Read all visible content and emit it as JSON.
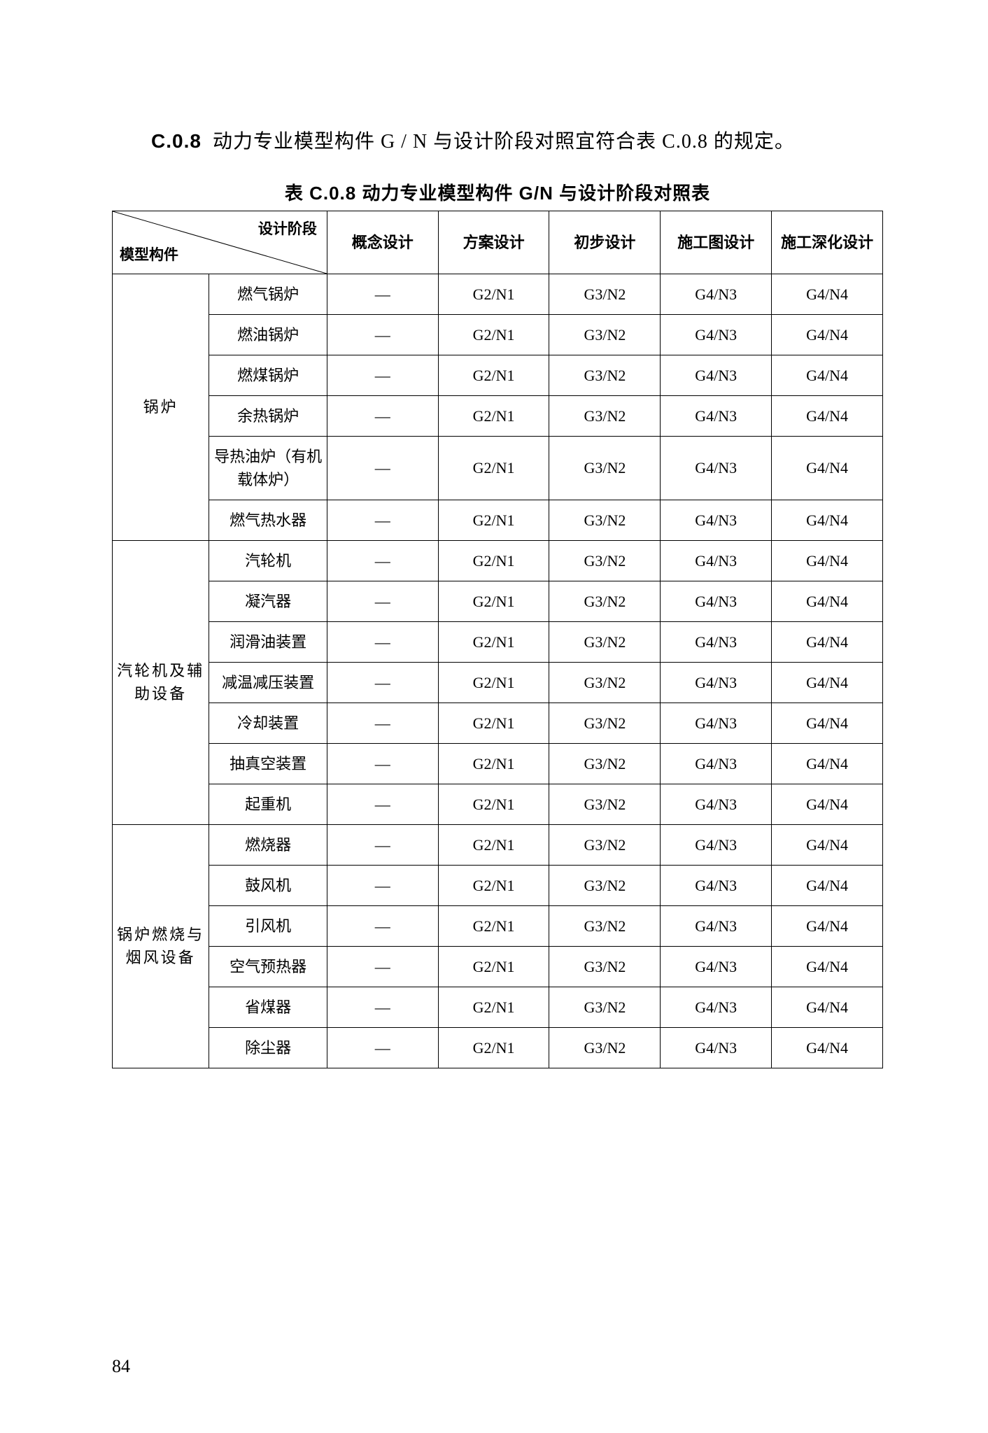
{
  "intro": {
    "section_code": "C.0.8",
    "text": "动力专业模型构件 G / N 与设计阶段对照宜符合表 C.0.8 的规定。"
  },
  "table": {
    "title": "表 C.0.8  动力专业模型构件 G/N 与设计阶段对照表",
    "header": {
      "diagonal_top": "设计阶段",
      "diagonal_bottom": "模型构件",
      "stages": [
        "概念设计",
        "方案设计",
        "初步设计",
        "施工图设计",
        "施工深化设计"
      ]
    },
    "groups": [
      {
        "category": "锅炉",
        "rows": [
          {
            "name": "燃气锅炉",
            "values": [
              "—",
              "G2/N1",
              "G3/N2",
              "G4/N3",
              "G4/N4"
            ]
          },
          {
            "name": "燃油锅炉",
            "values": [
              "—",
              "G2/N1",
              "G3/N2",
              "G4/N3",
              "G4/N4"
            ]
          },
          {
            "name": "燃煤锅炉",
            "values": [
              "—",
              "G2/N1",
              "G3/N2",
              "G4/N3",
              "G4/N4"
            ]
          },
          {
            "name": "余热锅炉",
            "values": [
              "—",
              "G2/N1",
              "G3/N2",
              "G4/N3",
              "G4/N4"
            ]
          },
          {
            "name": "导热油炉（有机载体炉）",
            "values": [
              "—",
              "G2/N1",
              "G3/N2",
              "G4/N3",
              "G4/N4"
            ]
          },
          {
            "name": "燃气热水器",
            "values": [
              "—",
              "G2/N1",
              "G3/N2",
              "G4/N3",
              "G4/N4"
            ]
          }
        ]
      },
      {
        "category": "汽轮机及辅助设备",
        "rows": [
          {
            "name": "汽轮机",
            "values": [
              "—",
              "G2/N1",
              "G3/N2",
              "G4/N3",
              "G4/N4"
            ]
          },
          {
            "name": "凝汽器",
            "values": [
              "—",
              "G2/N1",
              "G3/N2",
              "G4/N3",
              "G4/N4"
            ]
          },
          {
            "name": "润滑油装置",
            "values": [
              "—",
              "G2/N1",
              "G3/N2",
              "G4/N3",
              "G4/N4"
            ]
          },
          {
            "name": "减温减压装置",
            "values": [
              "—",
              "G2/N1",
              "G3/N2",
              "G4/N3",
              "G4/N4"
            ]
          },
          {
            "name": "冷却装置",
            "values": [
              "—",
              "G2/N1",
              "G3/N2",
              "G4/N3",
              "G4/N4"
            ]
          },
          {
            "name": "抽真空装置",
            "values": [
              "—",
              "G2/N1",
              "G3/N2",
              "G4/N3",
              "G4/N4"
            ]
          },
          {
            "name": "起重机",
            "values": [
              "—",
              "G2/N1",
              "G3/N2",
              "G4/N3",
              "G4/N4"
            ]
          }
        ]
      },
      {
        "category": "锅炉燃烧与烟风设备",
        "rows": [
          {
            "name": "燃烧器",
            "values": [
              "—",
              "G2/N1",
              "G3/N2",
              "G4/N3",
              "G4/N4"
            ]
          },
          {
            "name": "鼓风机",
            "values": [
              "—",
              "G2/N1",
              "G3/N2",
              "G4/N3",
              "G4/N4"
            ]
          },
          {
            "name": "引风机",
            "values": [
              "—",
              "G2/N1",
              "G3/N2",
              "G4/N3",
              "G4/N4"
            ]
          },
          {
            "name": "空气预热器",
            "values": [
              "—",
              "G2/N1",
              "G3/N2",
              "G4/N3",
              "G4/N4"
            ]
          },
          {
            "name": "省煤器",
            "values": [
              "—",
              "G2/N1",
              "G3/N2",
              "G4/N3",
              "G4/N4"
            ]
          },
          {
            "name": "除尘器",
            "values": [
              "—",
              "G2/N1",
              "G3/N2",
              "G4/N3",
              "G4/N4"
            ]
          }
        ]
      }
    ]
  },
  "page_number": "84",
  "styling": {
    "background_color": "#ffffff",
    "text_color": "#000000",
    "border_color": "#000000",
    "body_fontsize": 22,
    "title_fontsize": 26,
    "intro_fontsize": 28
  }
}
